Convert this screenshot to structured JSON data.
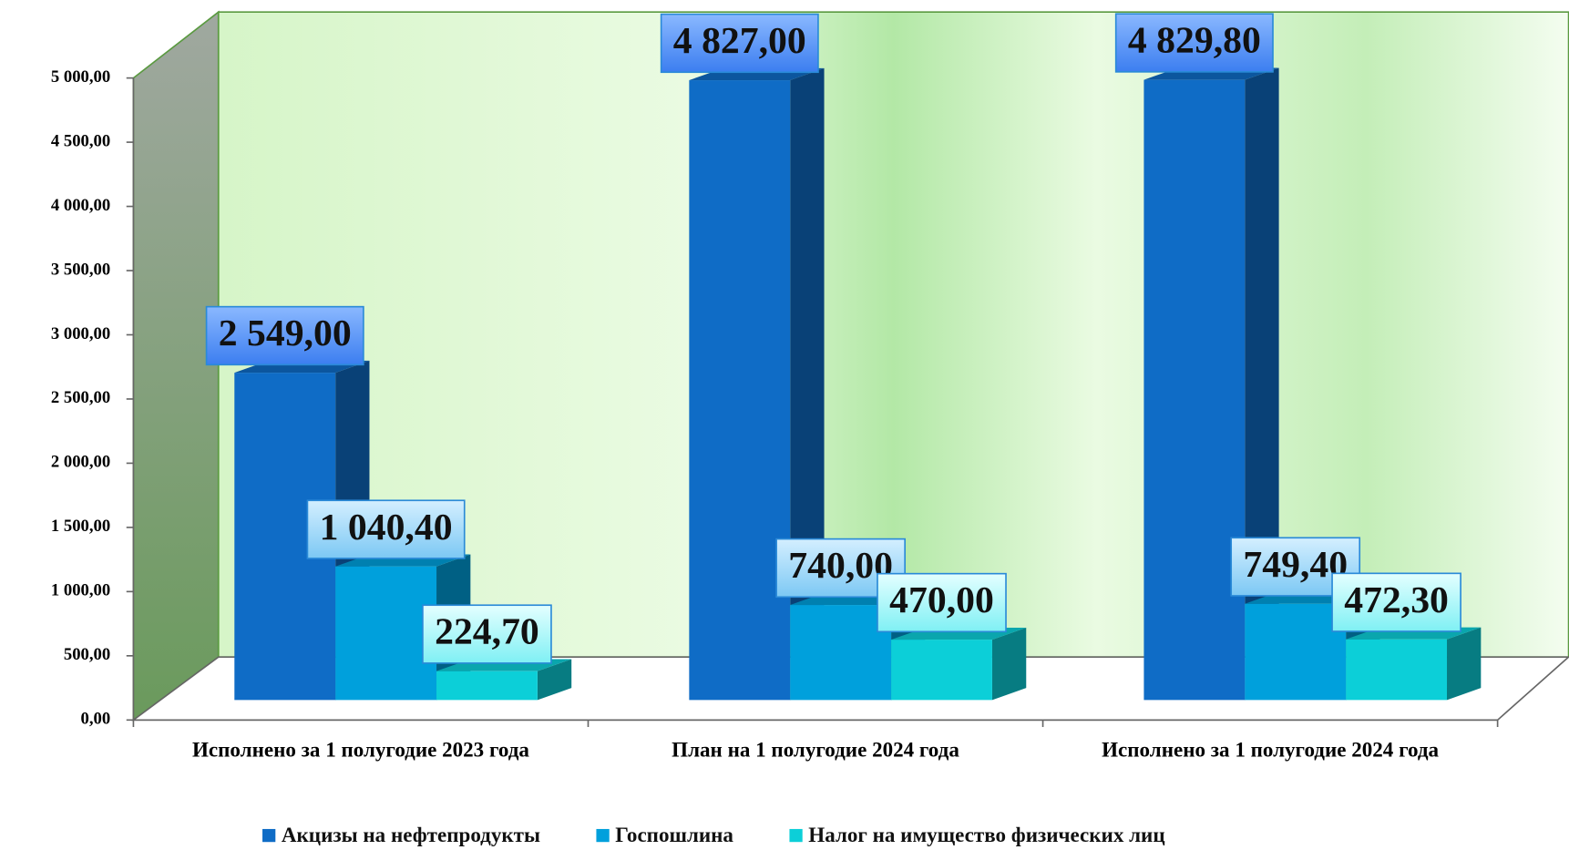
{
  "chart_data": {
    "type": "bar3d",
    "categories": [
      "Исполнено за 1 полугодие 2023 года",
      "План на 1 полугодие 2024 года",
      "Исполнено за 1 полугодие 2024 года"
    ],
    "series": [
      {
        "name": "Акцизы на нефтепродукты",
        "color": "#0f6cc6",
        "values": [
          2549,
          4827,
          4829.8
        ],
        "value_labels": [
          "2 549,00",
          "4 827,00",
          "4 829,80"
        ]
      },
      {
        "name": "Госпошлина",
        "color": "#00a0dc",
        "values": [
          1040.4,
          740,
          749.4
        ],
        "value_labels": [
          "1 040,40",
          "740,00",
          "749,40"
        ]
      },
      {
        "name": "Налог на имущество физических лиц",
        "color": "#0ccfd8",
        "values": [
          224.7,
          470,
          472.3
        ],
        "value_labels": [
          "224,70",
          "470,00",
          "472,30"
        ]
      }
    ],
    "ylim": [
      0,
      5000
    ],
    "yticks": [
      {
        "value": 0,
        "label": "0,00"
      },
      {
        "value": 500,
        "label": "500,00"
      },
      {
        "value": 1000,
        "label": "1 000,00"
      },
      {
        "value": 1500,
        "label": "1 500,00"
      },
      {
        "value": 2000,
        "label": "2 000,00"
      },
      {
        "value": 2500,
        "label": "2 500,00"
      },
      {
        "value": 3000,
        "label": "3 000,00"
      },
      {
        "value": 3500,
        "label": "3 500,00"
      },
      {
        "value": 4000,
        "label": "4 000,00"
      },
      {
        "value": 4500,
        "label": "4 500,00"
      },
      {
        "value": 5000,
        "label": "5 000,00"
      }
    ],
    "legend": "bottom"
  }
}
